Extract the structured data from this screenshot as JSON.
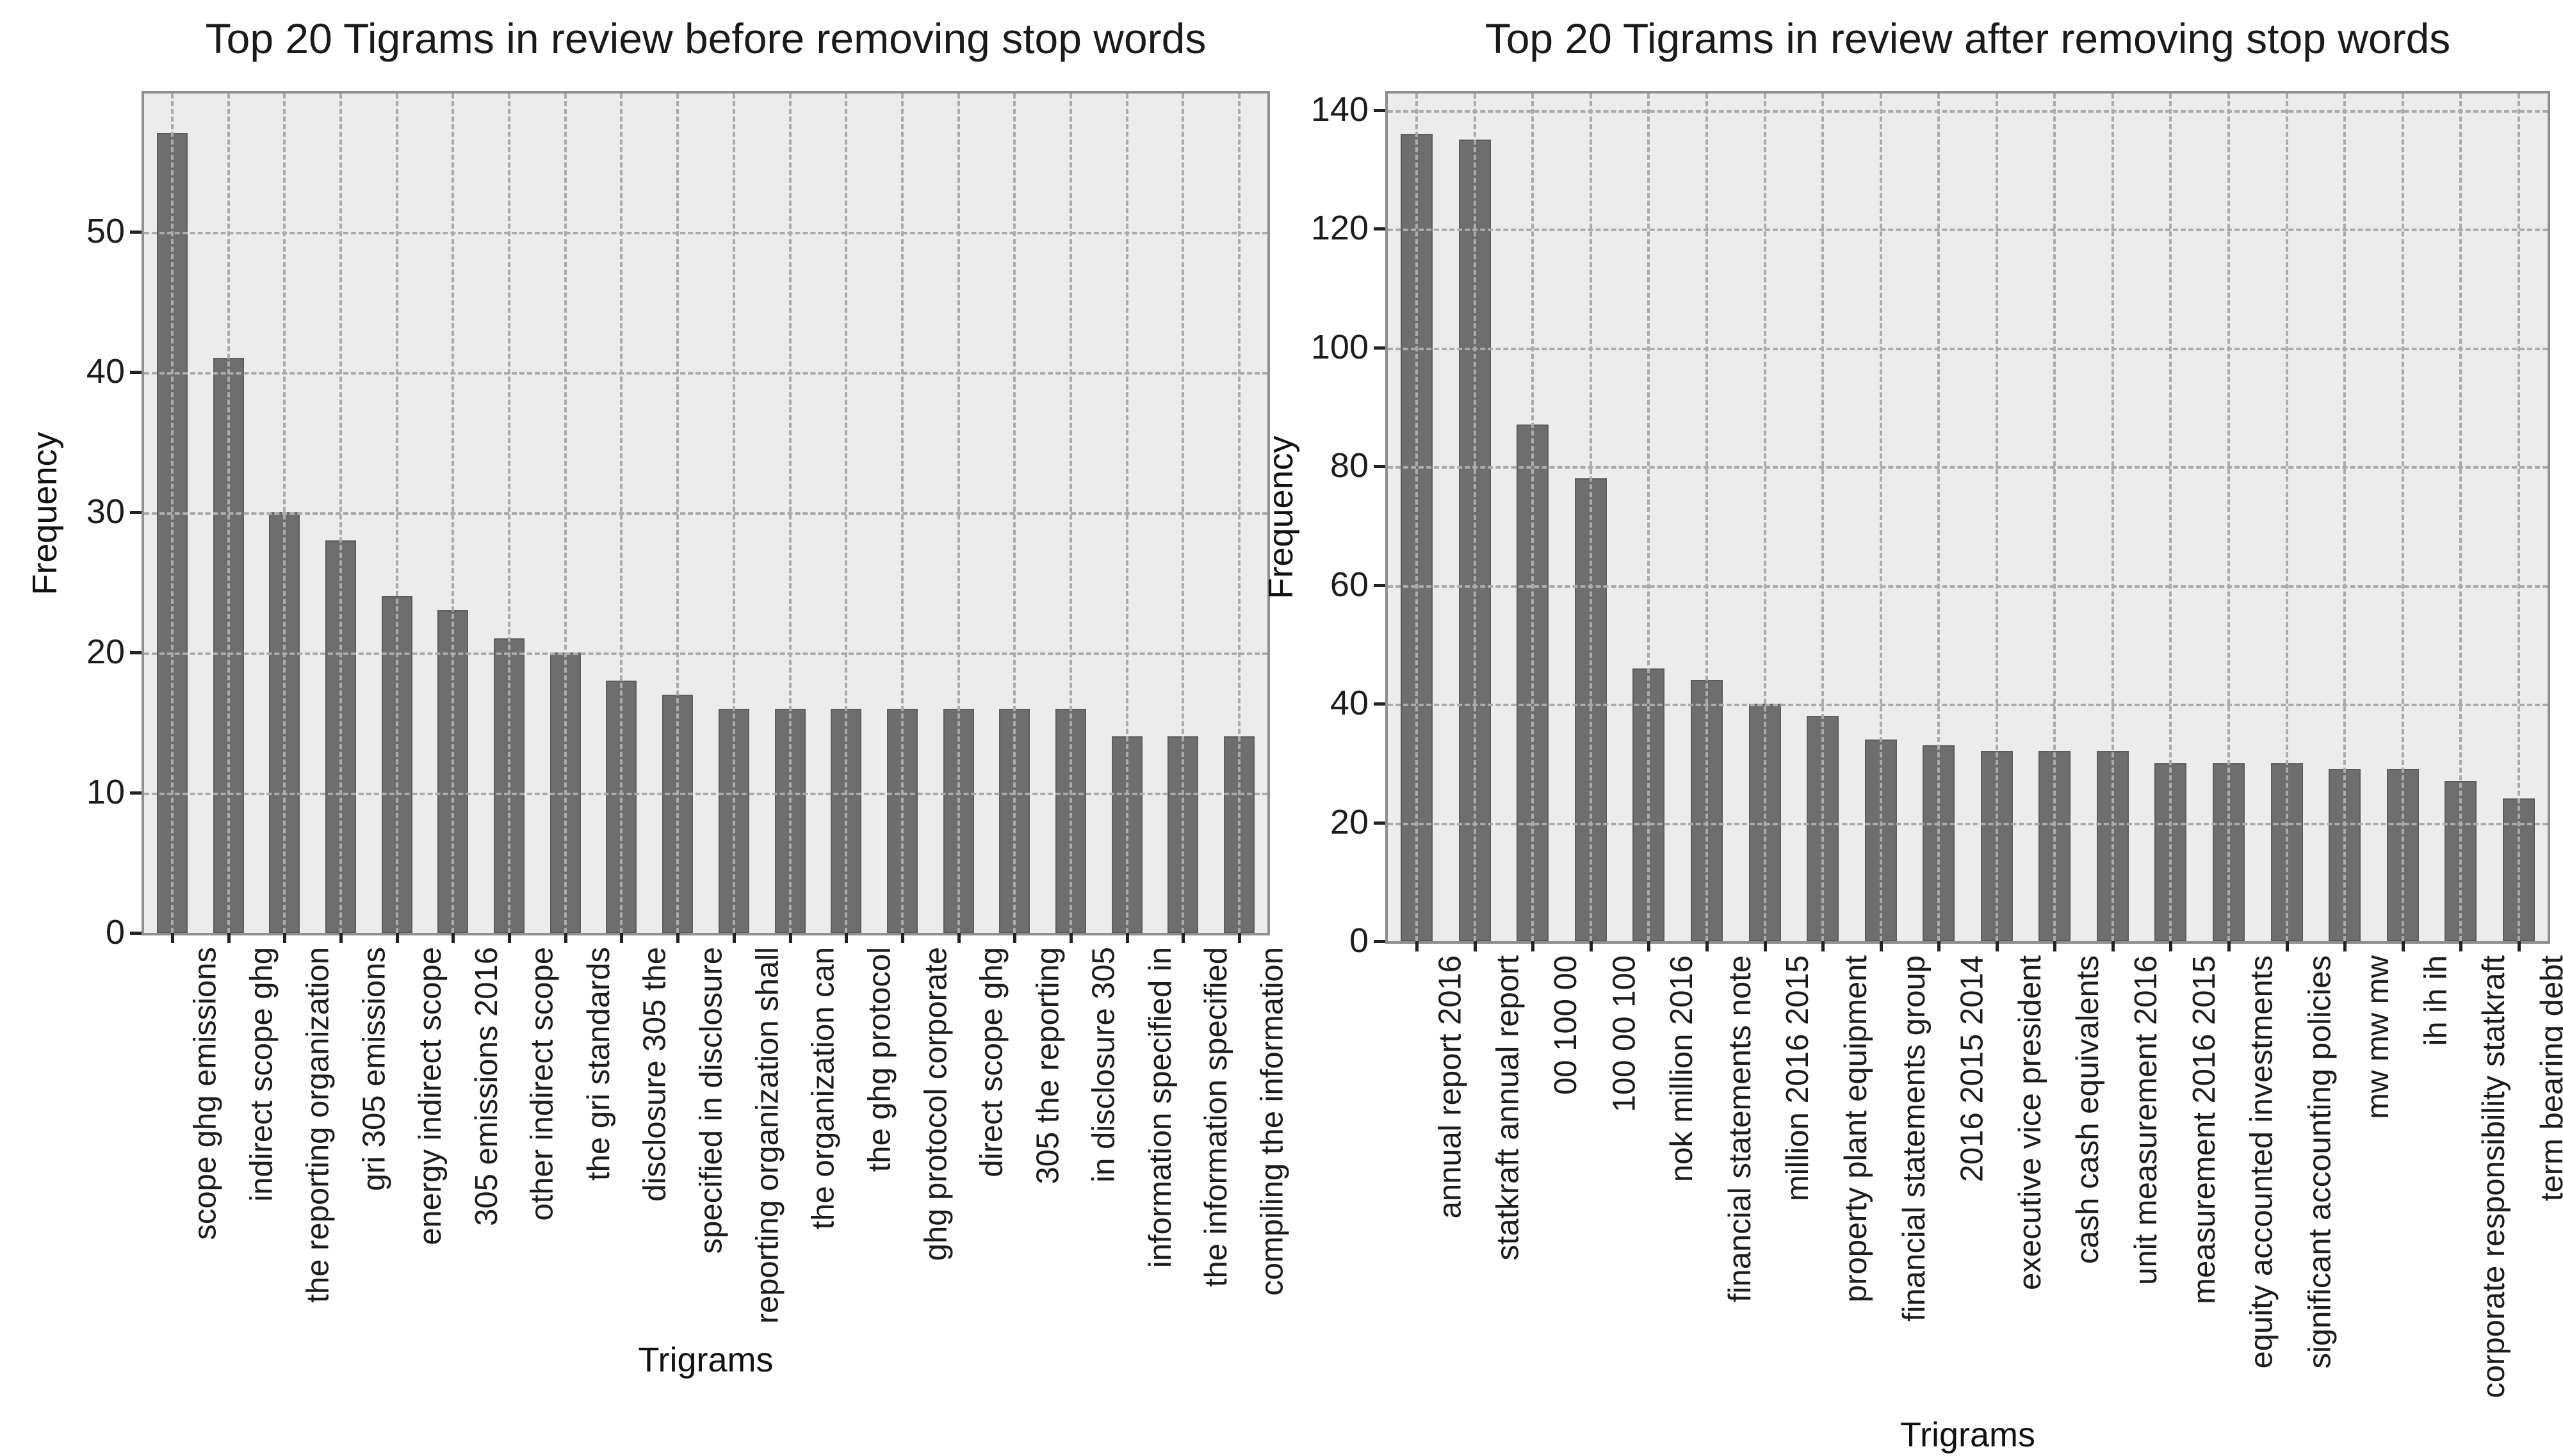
{
  "figure": {
    "background": "#ffffff"
  },
  "colors": {
    "plot_background": "#ececec",
    "bar_fill": "#6e6e6e",
    "bar_edge": "#5d5d5d",
    "grid": "#ababab",
    "spine": "#8f8f8f",
    "text": "#1a1a1a"
  },
  "chart_data": [
    {
      "type": "bar",
      "title": "Top 20 Tigrams in review before removing stop words",
      "xlabel": "Trigrams",
      "ylabel": "Frequency",
      "categories": [
        "scope ghg emissions",
        "indirect scope ghg",
        "the reporting organization",
        "gri 305 emissions",
        "energy indirect scope",
        "305 emissions 2016",
        "other indirect scope",
        "the gri standards",
        "disclosure 305 the",
        "specified in disclosure",
        "reporting organization shall",
        "the organization can",
        "the ghg protocol",
        "ghg protocol corporate",
        "direct scope ghg",
        "305 the reporting",
        "in disclosure 305",
        "information specified in",
        "the information specified",
        "compiling the information"
      ],
      "values": [
        57,
        41,
        30,
        28,
        24,
        23,
        21,
        20,
        18,
        17,
        16,
        16,
        16,
        16,
        16,
        16,
        16,
        14,
        14,
        14
      ],
      "yticks": [
        0,
        10,
        20,
        30,
        40,
        50
      ],
      "ylim": [
        0,
        59.85
      ],
      "grid": "dashed, gray, drawn above bars",
      "legend": "none"
    },
    {
      "type": "bar",
      "title": "Top 20 Tigrams in review after removing stop words",
      "xlabel": "Trigrams",
      "ylabel": "Frequency",
      "categories": [
        "annual report 2016",
        "statkraft annual report",
        "00 100 00",
        "100 00 100",
        "nok million 2016",
        "financial statements note",
        "million 2016 2015",
        "property plant equipment",
        "financial statements group",
        "2016 2015 2014",
        "executive vice president",
        "cash cash equivalents",
        "unit measurement 2016",
        "measurement 2016 2015",
        "equity accounted investments",
        "significant accounting policies",
        "mw mw mw",
        "ih ih ih",
        "corporate responsibility statkraft",
        "term bearing debt"
      ],
      "values": [
        136,
        135,
        87,
        78,
        46,
        44,
        40,
        38,
        34,
        33,
        32,
        32,
        32,
        30,
        30,
        30,
        29,
        29,
        27,
        24
      ],
      "yticks": [
        0,
        20,
        40,
        60,
        80,
        100,
        120,
        140
      ],
      "ylim": [
        0,
        142.8
      ],
      "grid": "dashed, gray, drawn above bars",
      "legend": "none"
    }
  ]
}
